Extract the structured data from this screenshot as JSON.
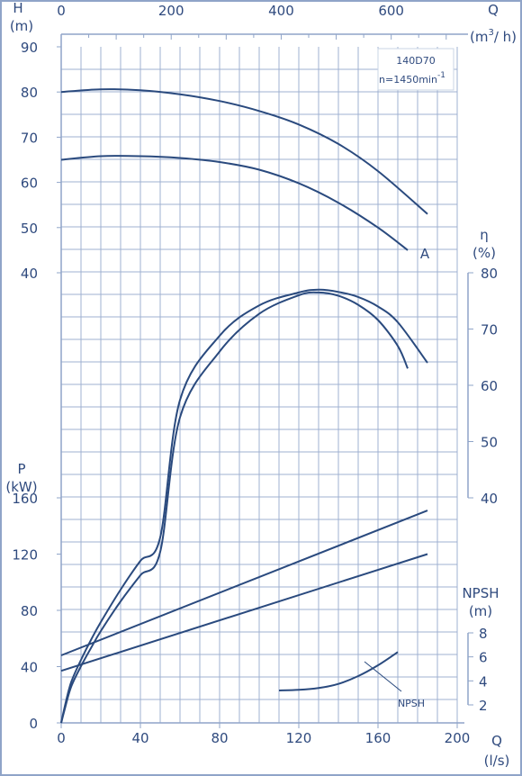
{
  "chart_data": {
    "type": "line",
    "annotation_model": "140D70",
    "annotation_speed": "n=1450min",
    "annotation_speed_exp": "-1",
    "curve_label_A": "A",
    "curve_label_npsh": "NPSH",
    "axes": {
      "flow_ls": {
        "label": "Q",
        "unit": "(l/s)",
        "range": [
          0,
          200
        ],
        "ticks": [
          0,
          40,
          80,
          120,
          160,
          200
        ]
      },
      "flow_m3h": {
        "label": "Q",
        "unit_prefix": "(m",
        "unit_exp": "3",
        "unit_suffix": "/ h)",
        "range": [
          0,
          720
        ],
        "ticks": [
          0,
          200,
          400,
          600
        ]
      },
      "head": {
        "label": "H",
        "unit": "(m)",
        "range": [
          40,
          90
        ],
        "ticks": [
          40,
          50,
          60,
          70,
          80,
          90
        ]
      },
      "efficiency": {
        "label": "η",
        "unit": "(%)",
        "range": [
          40,
          80
        ],
        "ticks": [
          40,
          50,
          60,
          70,
          80
        ]
      },
      "power": {
        "label": "P",
        "unit": "(kW)",
        "range": [
          0,
          160
        ],
        "ticks": [
          0,
          40,
          80,
          120,
          160
        ]
      },
      "npsh": {
        "label": "NPSH",
        "unit": "(m)",
        "range": [
          2,
          8
        ],
        "ticks": [
          2,
          4,
          6,
          8
        ]
      }
    },
    "series": [
      {
        "axis": "head",
        "x": [
          0,
          20,
          40,
          60,
          80,
          100,
          120,
          140,
          160,
          185
        ],
        "y": [
          80,
          80.6,
          80.4,
          79.5,
          78,
          75.8,
          72.8,
          68.5,
          62.5,
          53
        ]
      },
      {
        "axis": "head",
        "x": [
          0,
          20,
          40,
          60,
          80,
          100,
          120,
          140,
          160,
          175
        ],
        "y": [
          65,
          65.8,
          65.8,
          65.4,
          64.5,
          62.8,
          59.8,
          55.5,
          50,
          45
        ]
      },
      {
        "axis": "efficiency",
        "x": [
          60,
          80,
          100,
          120,
          130,
          140,
          150,
          160,
          170,
          185
        ],
        "y": [
          57.4,
          68.8,
          74.2,
          76.5,
          77,
          76.6,
          75.7,
          74,
          71.2,
          64
        ]
      },
      {
        "axis": "efficiency",
        "x": [
          60,
          80,
          100,
          120,
          130,
          140,
          150,
          160,
          170,
          175
        ],
        "y": [
          54.3,
          66,
          72.7,
          76,
          76.5,
          75.9,
          74.3,
          71.6,
          67,
          63
        ]
      },
      {
        "axis": "power",
        "x": [
          0,
          185
        ],
        "y": [
          48,
          151
        ]
      },
      {
        "axis": "power",
        "x": [
          0,
          185
        ],
        "y": [
          37,
          120
        ]
      },
      {
        "axis": "npsh",
        "x": [
          110,
          120,
          130,
          140,
          150,
          160,
          170
        ],
        "y": [
          3.2,
          3.25,
          3.4,
          3.75,
          4.4,
          5.3,
          6.4
        ]
      }
    ],
    "efficiency_rise": [
      {
        "x": [
          0,
          2,
          5,
          10,
          15,
          20,
          30,
          40,
          50,
          60
        ],
        "y": [
          0,
          20,
          45,
          70,
          92,
          112,
          148,
          180,
          206,
          228
        ]
      },
      {
        "x": [
          0,
          2,
          5,
          10,
          15,
          20,
          30,
          40,
          50,
          60
        ],
        "y": [
          0,
          17,
          40,
          63,
          83,
          102,
          135,
          164,
          190,
          212
        ]
      }
    ],
    "grid": true,
    "colors": {
      "curve": "#2a4a7e",
      "grid": "#9fb1d0",
      "text": "#2f4a7e",
      "frame": "#8fa4c8"
    }
  }
}
